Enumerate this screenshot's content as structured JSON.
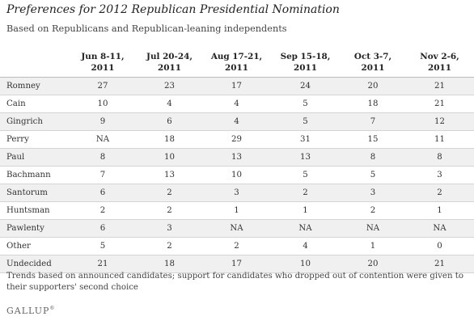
{
  "title": "Preferences for 2012 Republican Presidential Nomination",
  "subtitle": "Based on Republicans and Republican-leaning independents",
  "footnote": "Trends based on announced candidates; support for candidates who dropped out of contention were given to their supporters' second choice",
  "logo": "GALLUP",
  "logo_mark": "®",
  "chart_data": {
    "type": "table",
    "columns": [
      {
        "line1": "Jun 8-11,",
        "line2": "2011"
      },
      {
        "line1": "Jul 20-24,",
        "line2": "2011"
      },
      {
        "line1": "Aug 17-21,",
        "line2": "2011"
      },
      {
        "line1": "Sep 15-18,",
        "line2": "2011"
      },
      {
        "line1": "Oct 3-7,",
        "line2": "2011"
      },
      {
        "line1": "Nov 2-6,",
        "line2": "2011"
      }
    ],
    "rows": [
      {
        "label": "Romney",
        "values": [
          "27",
          "23",
          "17",
          "24",
          "20",
          "21"
        ]
      },
      {
        "label": "Cain",
        "values": [
          "10",
          "4",
          "4",
          "5",
          "18",
          "21"
        ]
      },
      {
        "label": "Gingrich",
        "values": [
          "9",
          "6",
          "4",
          "5",
          "7",
          "12"
        ]
      },
      {
        "label": "Perry",
        "values": [
          "NA",
          "18",
          "29",
          "31",
          "15",
          "11"
        ]
      },
      {
        "label": "Paul",
        "values": [
          "8",
          "10",
          "13",
          "13",
          "8",
          "8"
        ]
      },
      {
        "label": "Bachmann",
        "values": [
          "7",
          "13",
          "10",
          "5",
          "5",
          "3"
        ]
      },
      {
        "label": "Santorum",
        "values": [
          "6",
          "2",
          "3",
          "2",
          "3",
          "2"
        ]
      },
      {
        "label": "Huntsman",
        "values": [
          "2",
          "2",
          "1",
          "1",
          "2",
          "1"
        ]
      },
      {
        "label": "Pawlenty",
        "values": [
          "6",
          "3",
          "NA",
          "NA",
          "NA",
          "NA"
        ]
      },
      {
        "label": "Other",
        "values": [
          "5",
          "2",
          "2",
          "4",
          "1",
          "0"
        ]
      },
      {
        "label": "Undecided",
        "values": [
          "21",
          "18",
          "17",
          "10",
          "20",
          "21"
        ]
      }
    ]
  }
}
